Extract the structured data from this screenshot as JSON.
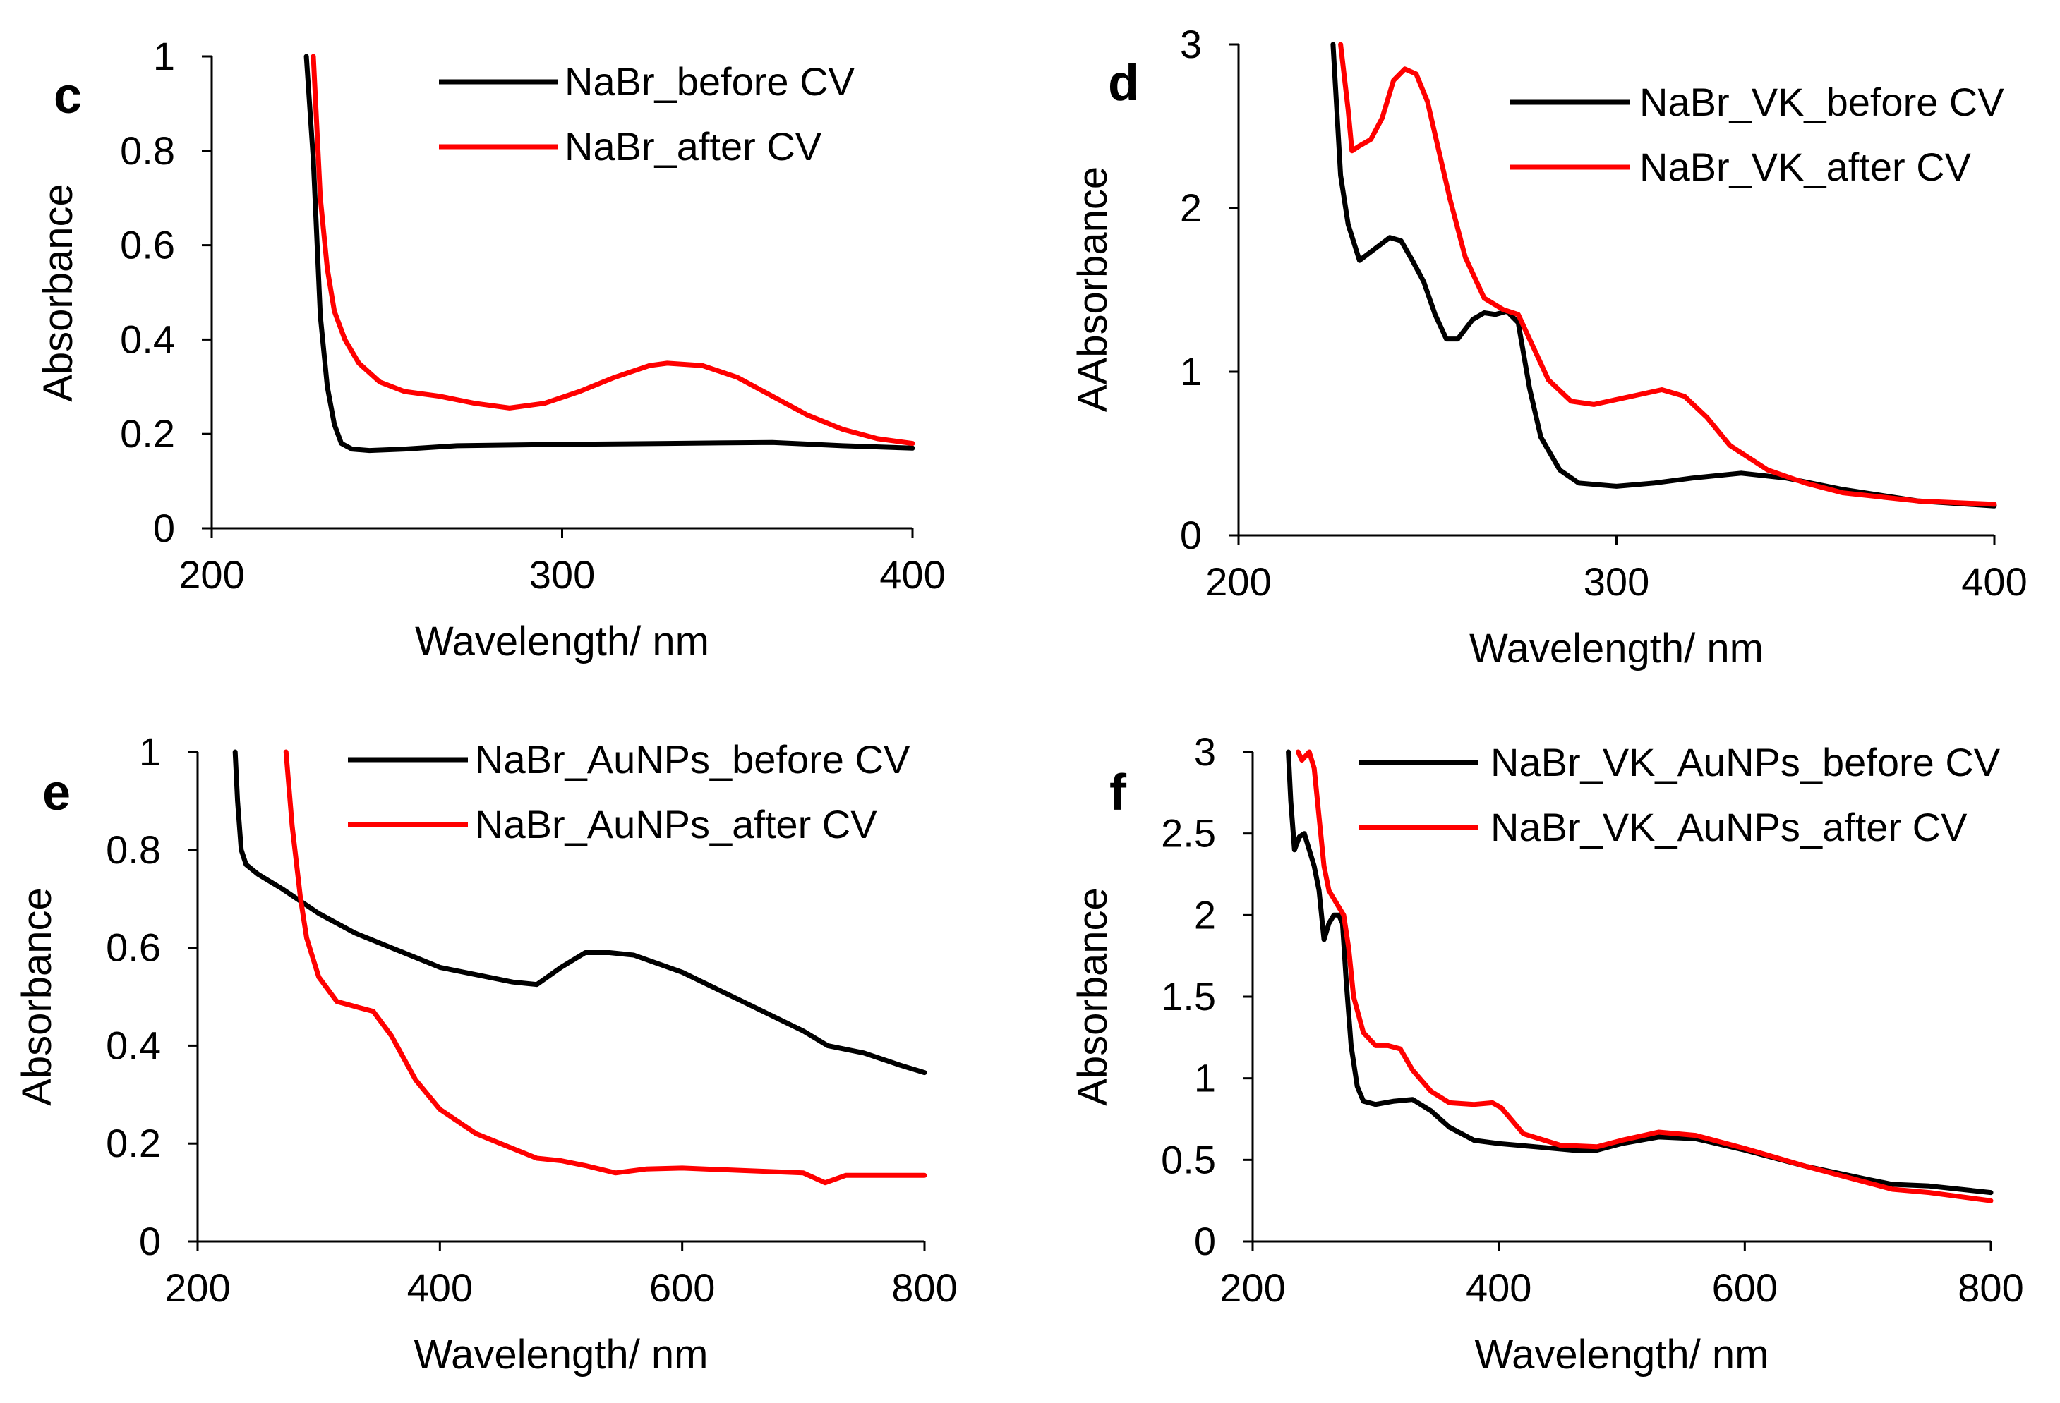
{
  "chart_data": [
    {
      "type": "line",
      "panel_label": "c",
      "xlabel": "Wavelength/ nm",
      "ylabel": "Absorbance",
      "xlim": [
        200,
        400
      ],
      "ylim": [
        0,
        1
      ],
      "xticks": [
        "200",
        "300",
        "400"
      ],
      "yticks": [
        "0",
        "0.2",
        "0.4",
        "0.6",
        "0.8",
        "1"
      ],
      "legend_position": "top-right",
      "series": [
        {
          "name": "NaBr_before CV",
          "color": "#000000",
          "x": [
            227,
            229,
            231,
            233,
            235,
            237,
            240,
            245,
            255,
            270,
            300,
            330,
            360,
            380,
            400
          ],
          "y": [
            1.0,
            0.78,
            0.45,
            0.3,
            0.22,
            0.18,
            0.168,
            0.165,
            0.168,
            0.175,
            0.178,
            0.18,
            0.182,
            0.175,
            0.17
          ]
        },
        {
          "name": "NaBr_after CV",
          "color": "#ff0000",
          "x": [
            229,
            231,
            233,
            235,
            238,
            242,
            248,
            255,
            265,
            275,
            285,
            295,
            305,
            315,
            325,
            330,
            340,
            350,
            360,
            370,
            380,
            390,
            400
          ],
          "y": [
            1.0,
            0.7,
            0.55,
            0.46,
            0.4,
            0.35,
            0.31,
            0.29,
            0.28,
            0.265,
            0.255,
            0.265,
            0.29,
            0.32,
            0.345,
            0.35,
            0.345,
            0.32,
            0.28,
            0.24,
            0.21,
            0.19,
            0.18
          ]
        }
      ]
    },
    {
      "type": "line",
      "panel_label": "d",
      "xlabel": "Wavelength/ nm",
      "ylabel": "AAbsorbance",
      "xlim": [
        200,
        400
      ],
      "ylim": [
        0,
        3
      ],
      "xticks": [
        "200",
        "300",
        "400"
      ],
      "yticks": [
        "0",
        "1",
        "2",
        "3"
      ],
      "legend_position": "top-right",
      "series": [
        {
          "name": "NaBr_VK_before CV",
          "color": "#000000",
          "x": [
            225,
            227,
            229,
            232,
            236,
            240,
            243,
            246,
            249,
            252,
            255,
            258,
            262,
            265,
            268,
            271,
            274,
            277,
            280,
            285,
            290,
            300,
            310,
            320,
            333,
            345,
            360,
            380,
            400
          ],
          "y": [
            3.0,
            2.2,
            1.9,
            1.68,
            1.75,
            1.82,
            1.8,
            1.68,
            1.55,
            1.35,
            1.2,
            1.2,
            1.32,
            1.36,
            1.35,
            1.37,
            1.3,
            0.9,
            0.6,
            0.4,
            0.32,
            0.3,
            0.32,
            0.35,
            0.38,
            0.35,
            0.28,
            0.21,
            0.18
          ]
        },
        {
          "name": "NaBr_VK_after CV",
          "color": "#ff0000",
          "x": [
            227,
            229,
            230,
            232,
            235,
            238,
            241,
            244,
            247,
            250,
            253,
            256,
            260,
            265,
            270,
            274,
            278,
            282,
            288,
            294,
            300,
            306,
            312,
            318,
            324,
            330,
            340,
            350,
            360,
            380,
            400
          ],
          "y": [
            3.0,
            2.6,
            2.35,
            2.38,
            2.42,
            2.55,
            2.78,
            2.85,
            2.82,
            2.65,
            2.35,
            2.05,
            1.7,
            1.45,
            1.38,
            1.35,
            1.15,
            0.95,
            0.82,
            0.8,
            0.83,
            0.86,
            0.89,
            0.85,
            0.72,
            0.55,
            0.4,
            0.32,
            0.26,
            0.21,
            0.19
          ]
        }
      ]
    },
    {
      "type": "line",
      "panel_label": "e",
      "xlabel": "Wavelength/ nm",
      "ylabel": "Absorbance",
      "xlim": [
        200,
        800
      ],
      "ylim": [
        0,
        1
      ],
      "xticks": [
        "200",
        "400",
        "600",
        "800"
      ],
      "yticks": [
        "0",
        "0.2",
        "0.4",
        "0.6",
        "0.8",
        "1"
      ],
      "legend_position": "top-right",
      "series": [
        {
          "name": "NaBr_AuNPs_before CV",
          "color": "#000000",
          "x": [
            231,
            233,
            236,
            240,
            250,
            270,
            300,
            330,
            360,
            390,
            400,
            430,
            460,
            480,
            500,
            520,
            540,
            560,
            600,
            650,
            700,
            720,
            750,
            780,
            800
          ],
          "y": [
            1.0,
            0.9,
            0.8,
            0.77,
            0.75,
            0.72,
            0.67,
            0.63,
            0.6,
            0.57,
            0.56,
            0.545,
            0.53,
            0.525,
            0.56,
            0.59,
            0.59,
            0.585,
            0.55,
            0.49,
            0.43,
            0.4,
            0.385,
            0.36,
            0.345
          ]
        },
        {
          "name": "NaBr_AuNPs_after CV",
          "color": "#ff0000",
          "x": [
            273,
            278,
            285,
            290,
            300,
            315,
            330,
            345,
            360,
            380,
            400,
            430,
            460,
            480,
            500,
            520,
            545,
            570,
            600,
            650,
            700,
            718,
            735,
            760,
            800
          ],
          "y": [
            1.0,
            0.85,
            0.7,
            0.62,
            0.54,
            0.49,
            0.48,
            0.47,
            0.42,
            0.33,
            0.27,
            0.22,
            0.19,
            0.17,
            0.165,
            0.155,
            0.14,
            0.148,
            0.15,
            0.145,
            0.14,
            0.12,
            0.135,
            0.135,
            0.135
          ]
        }
      ]
    },
    {
      "type": "line",
      "panel_label": "f",
      "xlabel": "Wavelength/ nm",
      "ylabel": "Absorbance",
      "xlim": [
        200,
        800
      ],
      "ylim": [
        0,
        3
      ],
      "xticks": [
        "200",
        "400",
        "600",
        "800"
      ],
      "yticks": [
        "0",
        "0.5",
        "1",
        "1.5",
        "2",
        "2.5",
        "3"
      ],
      "legend_position": "top-right",
      "series": [
        {
          "name": "NaBr_VK_AuNPs_before CV",
          "color": "#000000",
          "x": [
            229,
            231,
            234,
            238,
            242,
            246,
            250,
            254,
            258,
            262,
            266,
            270,
            273,
            276,
            280,
            285,
            290,
            300,
            315,
            330,
            345,
            360,
            380,
            400,
            430,
            460,
            480,
            500,
            530,
            560,
            600,
            650,
            700,
            720,
            750,
            800
          ],
          "y": [
            3.0,
            2.7,
            2.4,
            2.48,
            2.5,
            2.4,
            2.3,
            2.15,
            1.85,
            1.95,
            2.0,
            2.0,
            1.95,
            1.6,
            1.2,
            0.95,
            0.86,
            0.84,
            0.86,
            0.87,
            0.8,
            0.7,
            0.62,
            0.6,
            0.58,
            0.56,
            0.56,
            0.6,
            0.64,
            0.63,
            0.56,
            0.46,
            0.38,
            0.35,
            0.34,
            0.3
          ]
        },
        {
          "name": "NaBr_VK_AuNPs_after CV",
          "color": "#ff0000",
          "x": [
            237,
            240,
            246,
            250,
            254,
            258,
            262,
            266,
            270,
            274,
            278,
            282,
            290,
            300,
            310,
            320,
            330,
            345,
            360,
            380,
            395,
            402,
            420,
            450,
            480,
            500,
            530,
            560,
            600,
            650,
            700,
            720,
            750,
            800
          ],
          "y": [
            3.0,
            2.95,
            3.0,
            2.9,
            2.6,
            2.3,
            2.15,
            2.1,
            2.05,
            2.0,
            1.8,
            1.5,
            1.28,
            1.2,
            1.2,
            1.18,
            1.05,
            0.92,
            0.85,
            0.84,
            0.85,
            0.82,
            0.66,
            0.59,
            0.58,
            0.62,
            0.67,
            0.65,
            0.57,
            0.46,
            0.36,
            0.32,
            0.3,
            0.25
          ]
        }
      ]
    }
  ]
}
